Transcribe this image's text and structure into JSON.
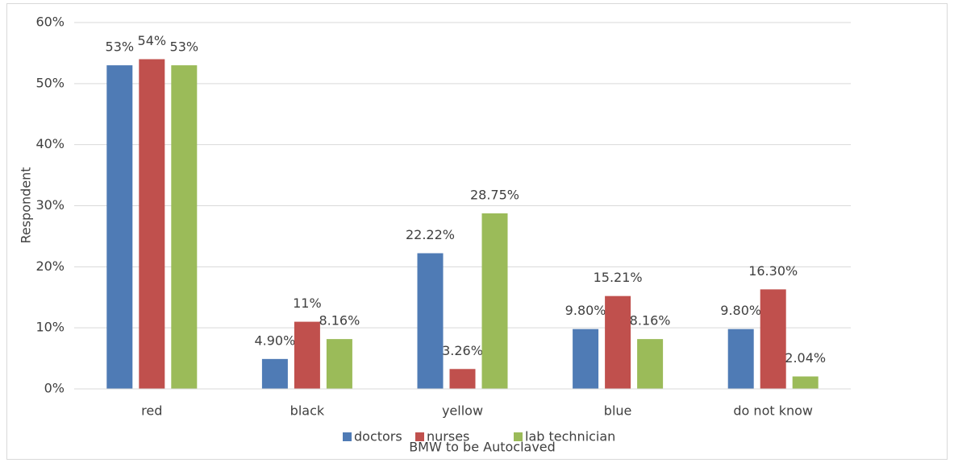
{
  "chart_data": {
    "type": "bar",
    "y_label": "Respondent",
    "x_label": "BMW to be Autoclaved",
    "categories": [
      "red",
      "black",
      "yellow",
      "blue",
      "do not know"
    ],
    "series": [
      {
        "name": "doctors",
        "color": "#4f7bb5",
        "values": [
          53,
          4.9,
          22.22,
          9.8,
          9.8
        ],
        "value_labels": [
          "53%",
          "4.90%",
          "22.22%",
          "9.80%",
          "9.80%"
        ]
      },
      {
        "name": "nurses",
        "color": "#c0504d",
        "values": [
          54,
          11,
          3.26,
          15.21,
          16.3
        ],
        "value_labels": [
          "54%",
          "11%",
          "3.26%",
          "15.21%",
          "16.30%"
        ]
      },
      {
        "name": "lab technician",
        "color": "#9bbb59",
        "values": [
          53,
          8.16,
          28.75,
          8.16,
          2.04
        ],
        "value_labels": [
          "53%",
          "8.16%",
          "28.75%",
          "8.16%",
          "2.04%"
        ]
      }
    ],
    "ylim": [
      0,
      60
    ],
    "yticks": [
      {
        "value": 0,
        "label": "0%"
      },
      {
        "value": 10,
        "label": "10%"
      },
      {
        "value": 20,
        "label": "20%"
      },
      {
        "value": 30,
        "label": "30%"
      },
      {
        "value": 40,
        "label": "40%"
      },
      {
        "value": 50,
        "label": "50%"
      },
      {
        "value": 60,
        "label": "60%"
      }
    ],
    "grid": true,
    "legend": "bottom"
  }
}
